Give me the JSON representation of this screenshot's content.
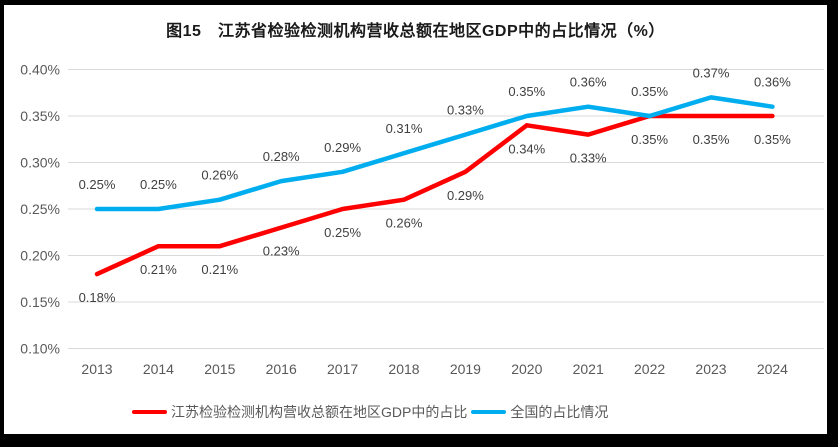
{
  "title": "图15　江苏省检验检测机构营收总额在地区GDP中的占比情况（%）",
  "chart_data": {
    "type": "line",
    "title": "图15　江苏省检验检测机构营收总额在地区GDP中的占比情况（%）",
    "categories": [
      "2013",
      "2014",
      "2015",
      "2016",
      "2017",
      "2018",
      "2019",
      "2020",
      "2021",
      "2022",
      "2023",
      "2024"
    ],
    "series": [
      {
        "name": "江苏检验检测机构营收总额在地区GDP中的占比",
        "color": "#FF0000",
        "values": [
          0.18,
          0.21,
          0.21,
          0.23,
          0.25,
          0.26,
          0.29,
          0.34,
          0.33,
          0.35,
          0.35,
          0.35
        ],
        "data_labels": [
          "0.18%",
          "0.21%",
          "0.21%",
          "0.23%",
          "0.25%",
          "0.26%",
          "0.29%",
          "0.34%",
          "0.33%",
          "0.35%",
          "0.35%",
          "0.35%"
        ],
        "label_position": "below"
      },
      {
        "name": "全国的占比情况",
        "color": "#00AEEF",
        "values": [
          0.25,
          0.25,
          0.26,
          0.28,
          0.29,
          0.31,
          0.33,
          0.35,
          0.36,
          0.35,
          0.37,
          0.36
        ],
        "data_labels": [
          "0.25%",
          "0.25%",
          "0.26%",
          "0.28%",
          "0.29%",
          "0.31%",
          "0.33%",
          "0.35%",
          "0.36%",
          "0.35%",
          "0.37%",
          "0.36%"
        ],
        "label_position": "above"
      }
    ],
    "ylim": [
      0.1,
      0.4
    ],
    "y_tick_values": [
      0.4,
      0.35,
      0.3,
      0.25,
      0.2,
      0.15,
      0.1
    ],
    "y_ticks": [
      "0.40%",
      "0.35%",
      "0.30%",
      "0.25%",
      "0.20%",
      "0.15%",
      "0.10%"
    ],
    "grid": true,
    "legend_position": "bottom",
    "colors": {
      "gridline": "#D9D9D9",
      "axis_text": "#595959",
      "data_label_text": "#404040",
      "title_text": "#1a1a1a",
      "frame_border": "#000000",
      "background": "#ffffff"
    }
  }
}
